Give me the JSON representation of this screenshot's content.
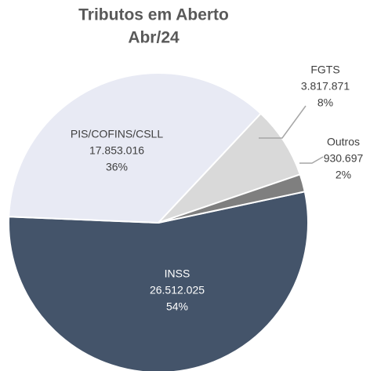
{
  "chart_data": {
    "type": "pie",
    "title": [
      "Tributos em Aberto",
      "Abr/24"
    ],
    "categories": [
      "INSS",
      "PIS/COFINS/CSLL",
      "FGTS",
      "Outros"
    ],
    "values": [
      26512025,
      17853016,
      3817871,
      930697
    ],
    "value_labels": [
      "26.512.025",
      "17.853.016",
      "3.817.871",
      "930.697"
    ],
    "percents": [
      54,
      36,
      8,
      2
    ],
    "percent_labels": [
      "54%",
      "36%",
      "8%",
      "2%"
    ],
    "colors": [
      "#44546a",
      "#e8eaf4",
      "#d9d9d9",
      "#7f7f7f"
    ]
  }
}
